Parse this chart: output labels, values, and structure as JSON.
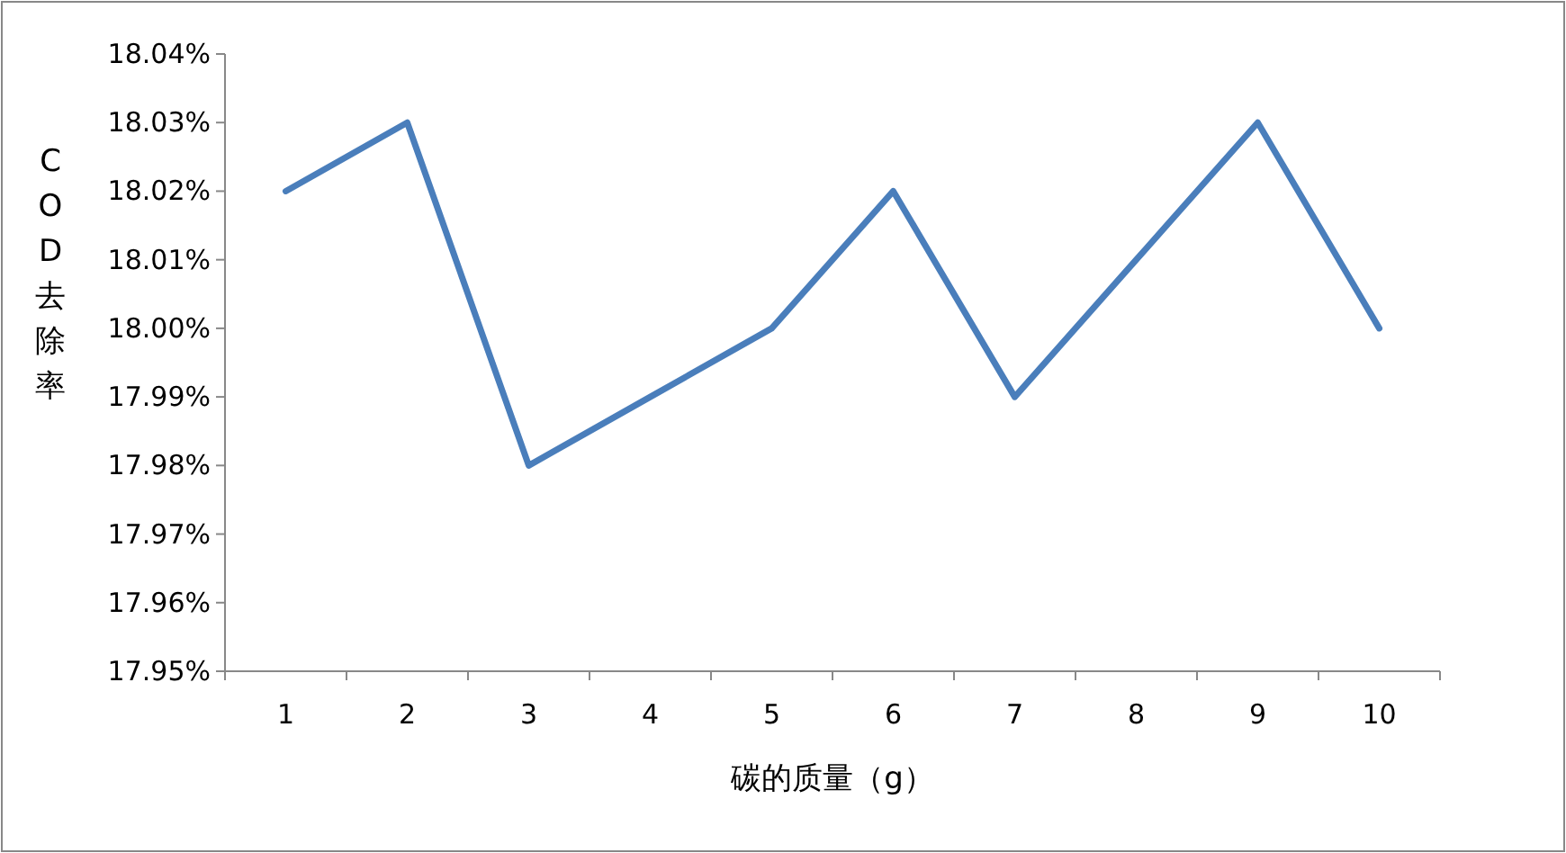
{
  "chart_data": {
    "type": "line",
    "xlabel": "碳的质量（g）",
    "ylabel": "COD去除率",
    "categories": [
      "1",
      "2",
      "3",
      "4",
      "5",
      "6",
      "7",
      "8",
      "9",
      "10"
    ],
    "series": [
      {
        "color": "#4a7ebb",
        "values": [
          18.02,
          18.03,
          17.98,
          17.99,
          18.0,
          18.02,
          17.99,
          18.01,
          18.03,
          18.0
        ]
      }
    ],
    "ylim": [
      17.95,
      18.04
    ],
    "yticks": [
      {
        "value": 17.95,
        "label": "17.95%"
      },
      {
        "value": 17.96,
        "label": "17.96%"
      },
      {
        "value": 17.97,
        "label": "17.97%"
      },
      {
        "value": 17.98,
        "label": "17.98%"
      },
      {
        "value": 17.99,
        "label": "17.99%"
      },
      {
        "value": 18.0,
        "label": "18.00%"
      },
      {
        "value": 18.01,
        "label": "18.01%"
      },
      {
        "value": 18.02,
        "label": "18.02%"
      },
      {
        "value": 18.03,
        "label": "18.03%"
      },
      {
        "value": 18.04,
        "label": "18.04%"
      }
    ],
    "grid": false,
    "marker": "none",
    "line_style": "solid"
  }
}
